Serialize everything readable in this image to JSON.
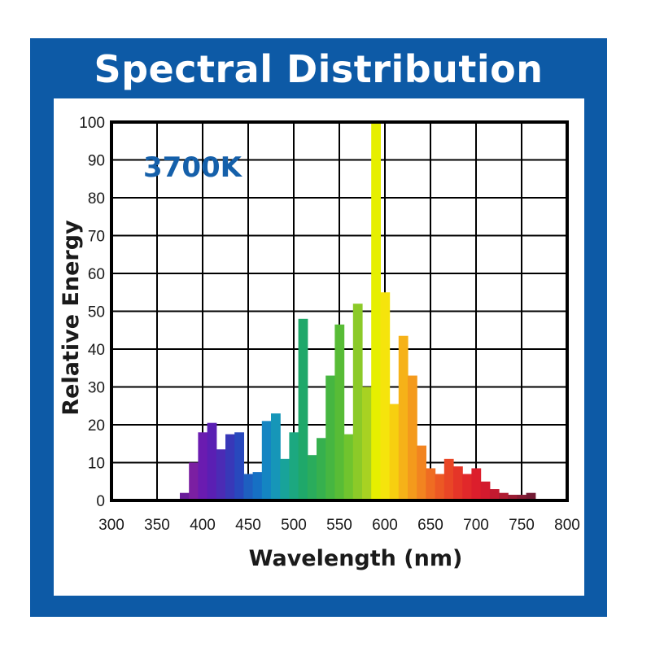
{
  "title": "Spectral Distribution",
  "colors": {
    "frame": "#0d5aa6",
    "annotation": "#1560aa",
    "grid": "#000000"
  },
  "chart_data": {
    "type": "bar",
    "title": "Spectral Distribution",
    "annotation": "3700K",
    "xlabel": "Wavelength (nm)",
    "ylabel": "Relative Energy",
    "xlim": [
      300,
      800
    ],
    "ylim": [
      0,
      100
    ],
    "xticks": [
      300,
      350,
      400,
      450,
      500,
      550,
      600,
      650,
      700,
      750,
      800
    ],
    "yticks": [
      0,
      10,
      20,
      30,
      40,
      50,
      60,
      70,
      80,
      90,
      100
    ],
    "grid": true,
    "bin_width": 10,
    "x": [
      380,
      390,
      400,
      410,
      420,
      430,
      440,
      450,
      460,
      470,
      480,
      490,
      500,
      510,
      520,
      530,
      540,
      550,
      560,
      570,
      580,
      590,
      600,
      610,
      620,
      630,
      640,
      650,
      660,
      670,
      680,
      690,
      700,
      710,
      720,
      730,
      740,
      750,
      760
    ],
    "values": [
      2,
      10,
      18,
      20.5,
      13.5,
      17.5,
      18,
      7,
      7.5,
      21,
      23,
      11,
      18,
      48,
      12,
      16.5,
      33,
      46.5,
      17.5,
      52,
      30,
      100,
      55,
      25.5,
      43.5,
      33,
      14.5,
      8.5,
      7,
      11,
      9,
      7,
      8.5,
      5,
      3,
      2,
      1.5,
      1.5,
      2
    ],
    "bar_colors": [
      "#6a1b9a",
      "#7b1fa2",
      "#6a1bb0",
      "#5a1fb3",
      "#4b2bb5",
      "#3838b8",
      "#2848bd",
      "#1e5fc0",
      "#1670c4",
      "#1485c2",
      "#1696b8",
      "#18a39a",
      "#1ca880",
      "#1fa86a",
      "#2aac5c",
      "#36b04e",
      "#46b641",
      "#58bc36",
      "#70c42e",
      "#8cca28",
      "#a8d222",
      "#e6ef00",
      "#f5e40c",
      "#f7cf10",
      "#f6b218",
      "#f49a1c",
      "#f28420",
      "#ef6c22",
      "#ec5824",
      "#e94626",
      "#e53528",
      "#e1282a",
      "#dc1e2c",
      "#d31a2e",
      "#c41a30",
      "#b01c32",
      "#9a1c33",
      "#861c34",
      "#731b34"
    ]
  }
}
